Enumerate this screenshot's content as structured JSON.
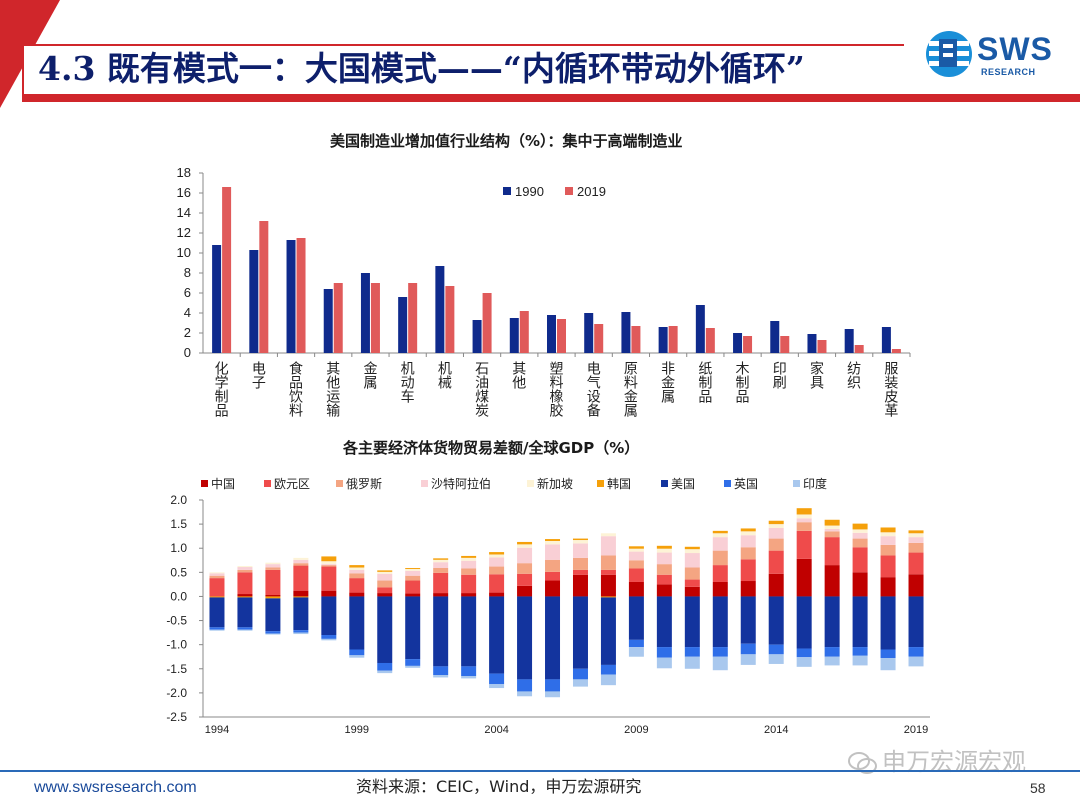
{
  "header": {
    "title": "4.3 既有模式一：大国模式——“内循环带动外循环”",
    "logo_text": "SWS",
    "logo_sub": "RESEARCH",
    "brand_color": "#d0262b",
    "title_color": "#0d1f6b"
  },
  "footer": {
    "url": "www.swsresearch.com",
    "source": "资料来源：CEIC，Wind，申万宏源研究",
    "page": "58",
    "watermark": "申万宏源宏观"
  },
  "chart_data": [
    {
      "type": "bar",
      "title": "美国制造业增加值行业结构（%）：集中于高端制造业",
      "xlabel": "",
      "ylabel": "",
      "ylim": [
        0,
        18
      ],
      "yticks": [
        0,
        2,
        4,
        6,
        8,
        10,
        12,
        14,
        16,
        18
      ],
      "legend_position": "top-center",
      "grid": false,
      "categories": [
        "化学制品",
        "电子",
        "食品饮料",
        "其他运输",
        "金属",
        "机动车",
        "机械",
        "石油煤炭",
        "其他",
        "塑料橡胶",
        "电气设备",
        "原料金属",
        "非金属",
        "纸制品",
        "木制品",
        "印刷",
        "家具",
        "纺织",
        "服装皮革"
      ],
      "series": [
        {
          "name": "1990",
          "color": "#0f2a8c",
          "values": [
            10.8,
            10.3,
            11.3,
            6.4,
            8.0,
            5.6,
            8.7,
            3.3,
            3.5,
            3.8,
            4.0,
            4.1,
            2.6,
            4.8,
            2.0,
            3.2,
            1.9,
            2.4,
            2.6
          ]
        },
        {
          "name": "2019",
          "color": "#e05a5a",
          "values": [
            16.6,
            13.2,
            11.5,
            7.0,
            7.0,
            7.0,
            6.7,
            6.0,
            4.2,
            3.4,
            2.9,
            2.7,
            2.7,
            2.5,
            1.7,
            1.7,
            1.3,
            0.8,
            0.4
          ]
        }
      ]
    },
    {
      "type": "bar",
      "stacked": true,
      "title": "各主要经济体货物贸易差额/全球GDP（%）",
      "xlabel": "",
      "ylabel": "",
      "ylim": [
        -2.5,
        2.0
      ],
      "yticks": [
        -2.5,
        -2.0,
        -1.5,
        -1.0,
        -0.5,
        0.0,
        0.5,
        1.0,
        1.5,
        2.0
      ],
      "xtick_labels": [
        "1994",
        "1999",
        "2004",
        "2009",
        "2014",
        "2019"
      ],
      "legend_position": "top",
      "grid": false,
      "categories": [
        "1994",
        "1995",
        "1996",
        "1997",
        "1998",
        "1999",
        "2000",
        "2001",
        "2002",
        "2003",
        "2004",
        "2005",
        "2006",
        "2007",
        "2008",
        "2009",
        "2010",
        "2011",
        "2012",
        "2013",
        "2014",
        "2015",
        "2016",
        "2017",
        "2018",
        "2019"
      ],
      "series": [
        {
          "name": "中国",
          "color": "#c00000",
          "values": [
            0.0,
            0.05,
            0.03,
            0.12,
            0.12,
            0.08,
            0.07,
            0.06,
            0.07,
            0.07,
            0.08,
            0.22,
            0.33,
            0.45,
            0.45,
            0.3,
            0.25,
            0.2,
            0.3,
            0.32,
            0.47,
            0.78,
            0.65,
            0.5,
            0.4,
            0.46
          ]
        },
        {
          "name": "欧元区",
          "color": "#ef4b4b",
          "values": [
            0.38,
            0.45,
            0.52,
            0.52,
            0.5,
            0.3,
            0.12,
            0.27,
            0.42,
            0.38,
            0.38,
            0.25,
            0.18,
            0.1,
            0.1,
            0.28,
            0.2,
            0.15,
            0.35,
            0.45,
            0.48,
            0.58,
            0.58,
            0.52,
            0.45,
            0.45
          ]
        },
        {
          "name": "俄罗斯",
          "color": "#f4a582",
          "values": [
            0.05,
            0.05,
            0.05,
            0.05,
            0.03,
            0.1,
            0.14,
            0.1,
            0.1,
            0.13,
            0.16,
            0.22,
            0.25,
            0.25,
            0.3,
            0.17,
            0.22,
            0.25,
            0.3,
            0.25,
            0.25,
            0.18,
            0.12,
            0.18,
            0.22,
            0.2
          ]
        },
        {
          "name": "沙特阿拉伯",
          "color": "#f9cfd5",
          "values": [
            0.05,
            0.06,
            0.07,
            0.07,
            0.02,
            0.07,
            0.14,
            0.1,
            0.12,
            0.16,
            0.19,
            0.32,
            0.32,
            0.3,
            0.4,
            0.18,
            0.24,
            0.3,
            0.28,
            0.25,
            0.22,
            0.08,
            0.05,
            0.12,
            0.18,
            0.12
          ]
        },
        {
          "name": "新加坡",
          "color": "#fdf3d6",
          "values": [
            0.02,
            0.02,
            0.03,
            0.04,
            0.06,
            0.05,
            0.04,
            0.04,
            0.05,
            0.06,
            0.06,
            0.07,
            0.07,
            0.07,
            0.06,
            0.06,
            0.08,
            0.08,
            0.08,
            0.08,
            0.08,
            0.08,
            0.07,
            0.07,
            0.08,
            0.08
          ]
        },
        {
          "name": "韩国",
          "color": "#f5a00a",
          "values": [
            -0.02,
            -0.02,
            -0.04,
            -0.02,
            0.1,
            0.05,
            0.03,
            0.02,
            0.03,
            0.04,
            0.05,
            0.05,
            0.04,
            0.03,
            -0.02,
            0.05,
            0.06,
            0.05,
            0.05,
            0.06,
            0.07,
            0.13,
            0.12,
            0.12,
            0.1,
            0.06
          ]
        },
        {
          "name": "美国",
          "color": "#13349e",
          "values": [
            -0.62,
            -0.62,
            -0.68,
            -0.68,
            -0.8,
            -1.1,
            -1.38,
            -1.3,
            -1.45,
            -1.45,
            -1.6,
            -1.72,
            -1.72,
            -1.5,
            -1.4,
            -0.9,
            -1.05,
            -1.05,
            -1.05,
            -0.98,
            -1.0,
            -1.08,
            -1.05,
            -1.05,
            -1.1,
            -1.05
          ]
        },
        {
          "name": "英国",
          "color": "#2f6ee8",
          "values": [
            -0.05,
            -0.05,
            -0.05,
            -0.05,
            -0.08,
            -0.12,
            -0.16,
            -0.14,
            -0.18,
            -0.2,
            -0.22,
            -0.25,
            -0.25,
            -0.22,
            -0.2,
            -0.15,
            -0.22,
            -0.2,
            -0.2,
            -0.22,
            -0.2,
            -0.18,
            -0.2,
            -0.18,
            -0.18,
            -0.2
          ]
        },
        {
          "name": "印度",
          "color": "#a9c8ee",
          "values": [
            -0.02,
            -0.02,
            -0.02,
            -0.03,
            -0.03,
            -0.05,
            -0.05,
            -0.04,
            -0.05,
            -0.05,
            -0.08,
            -0.1,
            -0.12,
            -0.15,
            -0.22,
            -0.2,
            -0.22,
            -0.25,
            -0.28,
            -0.22,
            -0.2,
            -0.2,
            -0.18,
            -0.2,
            -0.25,
            -0.2
          ]
        }
      ]
    }
  ]
}
